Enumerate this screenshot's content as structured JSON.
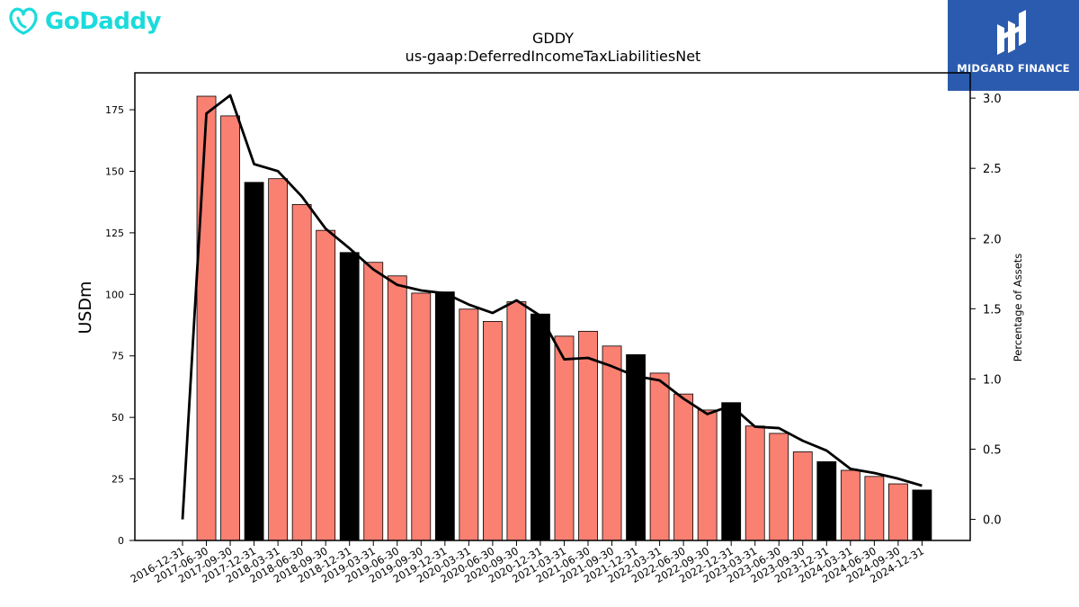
{
  "brand_left": {
    "name": "GoDaddy",
    "color": "#1BDBDB"
  },
  "brand_right": {
    "name": "MIDGARD FINANCE",
    "color": "#2B5BAE"
  },
  "chart_data": {
    "type": "bar",
    "title": "GDDY",
    "subtitle": "us-gaap:DeferredIncomeTaxLiabilitiesNet",
    "ylabel": "USDm",
    "y2label": "Percentage of Assets",
    "ylim": [
      0,
      190
    ],
    "y2lim": [
      -0.15,
      3.18
    ],
    "yticks": [
      0,
      25,
      50,
      75,
      100,
      125,
      150,
      175
    ],
    "y2ticks": [
      "0.0",
      "0.5",
      "1.0",
      "1.5",
      "2.0",
      "2.5",
      "3.0"
    ],
    "colors": {
      "quarter_bar": "#FA8072",
      "year_end_bar": "#000000",
      "line": "#000000"
    },
    "categories": [
      "2016-12-31",
      "2017-06-30",
      "2017-09-30",
      "2017-12-31",
      "2018-03-31",
      "2018-06-30",
      "2018-09-30",
      "2018-12-31",
      "2019-03-31",
      "2019-06-30",
      "2019-09-30",
      "2019-12-31",
      "2020-03-31",
      "2020-06-30",
      "2020-09-30",
      "2020-12-31",
      "2021-03-31",
      "2021-06-30",
      "2021-09-30",
      "2021-12-31",
      "2022-03-31",
      "2022-06-30",
      "2022-09-30",
      "2022-12-31",
      "2023-03-31",
      "2023-06-30",
      "2023-09-30",
      "2023-12-31",
      "2024-03-31",
      "2024-06-30",
      "2024-09-30",
      "2024-12-31"
    ],
    "series": [
      {
        "type": "bar",
        "values": [
          null,
          180.5,
          172.5,
          145.5,
          147.0,
          136.5,
          126.0,
          117.0,
          113.0,
          107.5,
          100.5,
          101.0,
          94.0,
          89.0,
          97.0,
          92.0,
          83.0,
          85.0,
          79.0,
          75.5,
          68.0,
          59.5,
          53.0,
          56.0,
          46.5,
          43.5,
          36.0,
          32.0,
          28.5,
          26.0,
          23.0,
          20.5
        ],
        "year_end": [
          false,
          false,
          false,
          true,
          false,
          false,
          false,
          true,
          false,
          false,
          false,
          true,
          false,
          false,
          false,
          true,
          false,
          false,
          false,
          true,
          false,
          false,
          false,
          true,
          false,
          false,
          false,
          true,
          false,
          false,
          false,
          true
        ]
      },
      {
        "type": "line",
        "axis": "right",
        "values": [
          0.0,
          2.89,
          3.02,
          2.53,
          2.48,
          2.3,
          2.07,
          1.93,
          1.78,
          1.67,
          1.63,
          1.61,
          1.53,
          1.47,
          1.56,
          1.45,
          1.14,
          1.15,
          1.09,
          1.02,
          0.99,
          0.86,
          0.75,
          0.81,
          0.66,
          0.65,
          0.56,
          0.49,
          0.36,
          0.33,
          0.29,
          0.24
        ]
      }
    ]
  }
}
